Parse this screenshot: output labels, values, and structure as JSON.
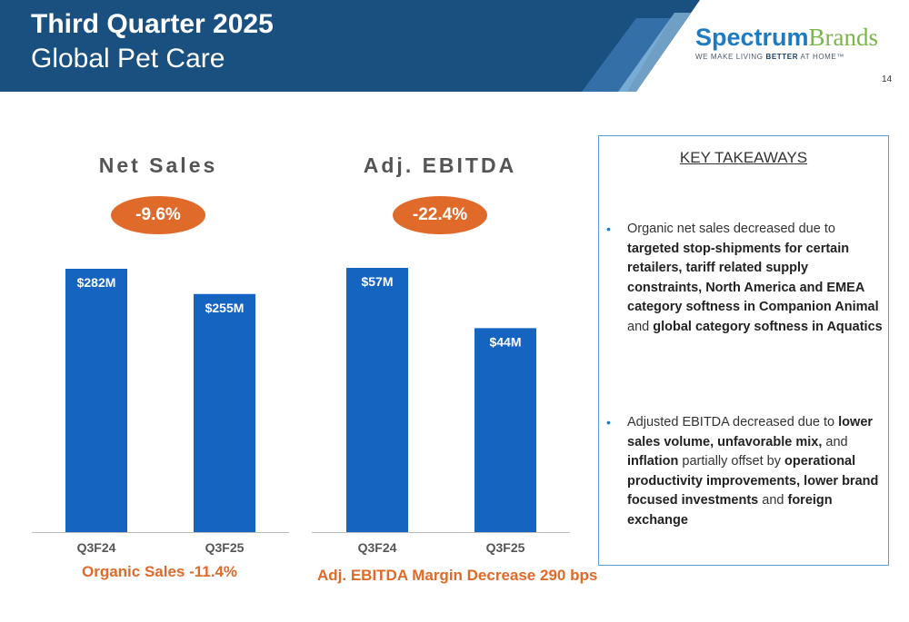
{
  "header": {
    "title_line1": "Third Quarter 2025",
    "title_line2": "Global Pet Care",
    "page_number": "14"
  },
  "logo": {
    "name_part1": "Spectrum",
    "name_part2": "Brands",
    "tagline_pre": "WE MAKE LIVING ",
    "tagline_bold": "BETTER",
    "tagline_post": " AT HOME™"
  },
  "colors": {
    "header_bg": "#1a5080",
    "bar": "#1565c0",
    "accent_orange": "#e06a2a",
    "panel_border": "#5aa0d6"
  },
  "chart_data": [
    {
      "type": "bar",
      "title": "Net Sales",
      "change_badge": "-9.6%",
      "categories": [
        "Q3F24",
        "Q3F25"
      ],
      "values": [
        282,
        255
      ],
      "data_labels": [
        "$282M",
        "$255M"
      ],
      "unit": "$M",
      "footnote": "Organic Sales -11.4%"
    },
    {
      "type": "bar",
      "title": "Adj. EBITDA",
      "change_badge": "-22.4%",
      "categories": [
        "Q3F24",
        "Q3F25"
      ],
      "values": [
        57,
        44
      ],
      "data_labels": [
        "$57M",
        "$44M"
      ],
      "unit": "$M",
      "footnote": "Adj. EBITDA Margin Decrease 290 bps"
    }
  ],
  "takeaways": {
    "heading": "KEY TAKEAWAYS",
    "bullet_marker": "•",
    "bullets": [
      [
        {
          "t": "Organic net sales decreased due to ",
          "b": false
        },
        {
          "t": "targeted stop-shipments for certain retailers, tariff related supply constraints, North America and EMEA category softness in Companion Animal",
          "b": true
        },
        {
          "t": " and ",
          "b": false
        },
        {
          "t": "global category softness in Aquatics",
          "b": true
        }
      ],
      [
        {
          "t": "Adjusted EBITDA decreased due to ",
          "b": false
        },
        {
          "t": "lower sales volume, unfavorable mix,",
          "b": true
        },
        {
          "t": " and ",
          "b": false
        },
        {
          "t": "inflation",
          "b": true
        },
        {
          "t": " partially offset by ",
          "b": false
        },
        {
          "t": "operational productivity improvements, lower brand focused investments",
          "b": true
        },
        {
          "t": " and ",
          "b": false
        },
        {
          "t": "foreign exchange",
          "b": true
        }
      ]
    ]
  }
}
